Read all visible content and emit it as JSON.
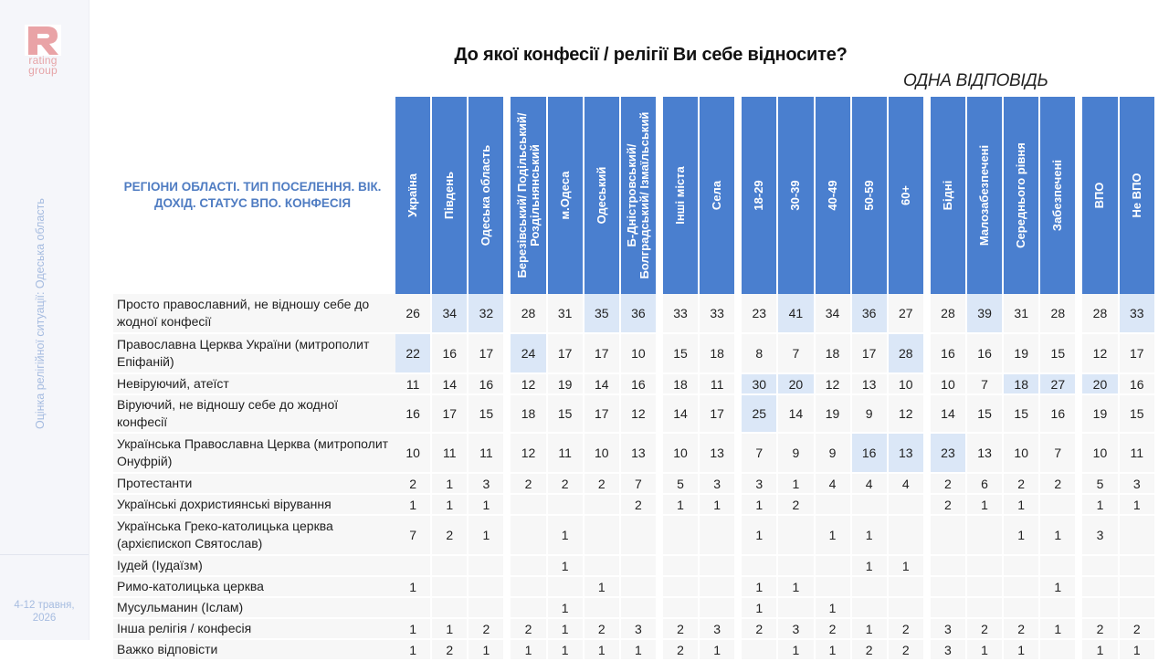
{
  "brand": {
    "logo_letter": "R",
    "logo_line1": "rating",
    "logo_line2": "group",
    "accent": "#e9a3a6"
  },
  "sidebar": {
    "vertical_text": "Оцінка релігійної ситуації: Одеська область",
    "date_line1": "4-12 травня,",
    "date_line2": "2026"
  },
  "title": "До якої конфесії / релігії Ви себе відносите?",
  "subtitle": "ОДНА ВІДПОВІДЬ",
  "table": {
    "corner_label": "РЕГІОНИ ОБЛАСТІ. ТИП ПОСЕЛЕННЯ. ВІК. ДОХІД. СТАТУС ВПО. КОНФЕСІЯ",
    "header_color": "#4a7fcf",
    "highlight_color": "#dbe7f7",
    "groups": [
      [
        "Україна",
        "Південь",
        "Одеська область"
      ],
      [
        "Березівський/ Подільський/ Роздільнянський",
        "м.Одеса",
        "Одеський",
        "Б-Дністровський/ Болградський/ Ізмаїльський"
      ],
      [
        "Інші міста",
        "Села"
      ],
      [
        "18-29",
        "30-39",
        "40-49",
        "50-59",
        "60+"
      ],
      [
        "Бідні",
        "Малозабезпечені",
        "Середнього рівня",
        "Забезпечені"
      ],
      [
        "ВПО",
        "Не ВПО"
      ]
    ],
    "rows": [
      {
        "label": "Просто православний, не відношу себе до жодної конфесії",
        "tall": true,
        "values": [
          "26",
          "34",
          "32",
          "28",
          "31",
          "35",
          "36",
          "33",
          "33",
          "23",
          "41",
          "34",
          "36",
          "27",
          "28",
          "39",
          "31",
          "28",
          "28",
          "33"
        ],
        "highlight": [
          1,
          2,
          5,
          6,
          10,
          12,
          15,
          19
        ]
      },
      {
        "label": "Православна Церква України (митрополит Епіфаній)",
        "tall": true,
        "values": [
          "22",
          "16",
          "17",
          "24",
          "17",
          "17",
          "10",
          "15",
          "18",
          "8",
          "7",
          "18",
          "17",
          "28",
          "16",
          "16",
          "19",
          "15",
          "12",
          "17"
        ],
        "highlight": [
          0,
          3,
          13
        ]
      },
      {
        "label": "Невіруючий, атеїст",
        "tall": false,
        "values": [
          "11",
          "14",
          "16",
          "12",
          "19",
          "14",
          "16",
          "18",
          "11",
          "30",
          "20",
          "12",
          "13",
          "10",
          "10",
          "7",
          "18",
          "27",
          "20",
          "16"
        ],
        "highlight": [
          9,
          10,
          16,
          17,
          18
        ]
      },
      {
        "label": "Віруючий, не відношу себе до жодної конфесії",
        "tall": false,
        "values": [
          "16",
          "17",
          "15",
          "18",
          "15",
          "17",
          "12",
          "14",
          "17",
          "25",
          "14",
          "19",
          "9",
          "12",
          "14",
          "15",
          "15",
          "16",
          "19",
          "15"
        ],
        "highlight": [
          9
        ]
      },
      {
        "label": "Українська Православна Церква (митрополит Онуфрій)",
        "tall": true,
        "values": [
          "10",
          "11",
          "11",
          "12",
          "11",
          "10",
          "13",
          "10",
          "13",
          "7",
          "9",
          "9",
          "16",
          "13",
          "23",
          "13",
          "10",
          "7",
          "10",
          "11"
        ],
        "highlight": [
          12,
          13,
          14
        ]
      },
      {
        "label": "Протестанти",
        "tall": false,
        "values": [
          "2",
          "1",
          "3",
          "2",
          "2",
          "2",
          "7",
          "5",
          "3",
          "3",
          "1",
          "4",
          "4",
          "4",
          "2",
          "6",
          "2",
          "2",
          "5",
          "3"
        ],
        "highlight": []
      },
      {
        "label": "Українські дохристиянські вірування",
        "tall": false,
        "values": [
          "1",
          "1",
          "1",
          "",
          "",
          "",
          "2",
          "1",
          "1",
          "1",
          "2",
          "",
          "",
          "",
          "2",
          "1",
          "1",
          "",
          "1",
          "1"
        ],
        "highlight": []
      },
      {
        "label": "Українська Греко-католицька церква (архієпископ Святослав)",
        "tall": true,
        "values": [
          "7",
          "2",
          "1",
          "",
          "1",
          "",
          "",
          "",
          "",
          "1",
          "",
          "1",
          "1",
          "",
          "",
          "",
          "1",
          "1",
          "3",
          ""
        ],
        "highlight": []
      },
      {
        "label": "Іудей (Іудаїзм)",
        "tall": false,
        "values": [
          "",
          "",
          "",
          "",
          "1",
          "",
          "",
          "",
          "",
          "",
          "",
          "",
          "1",
          "1",
          "",
          "",
          "",
          "",
          "",
          ""
        ],
        "highlight": []
      },
      {
        "label": "Римо-католицька церква",
        "tall": false,
        "values": [
          "1",
          "",
          "",
          "",
          "",
          "1",
          "",
          "",
          "",
          "1",
          "1",
          "",
          "",
          "",
          "",
          "",
          "",
          "1",
          "",
          ""
        ],
        "highlight": []
      },
      {
        "label": "Мусульманин (Іслам)",
        "tall": false,
        "values": [
          "",
          "",
          "",
          "",
          "1",
          "",
          "",
          "",
          "",
          "1",
          "",
          "1",
          "",
          "",
          "",
          "",
          "",
          "",
          "",
          ""
        ],
        "highlight": []
      },
      {
        "label": "Інша релігія / конфесія",
        "tall": false,
        "values": [
          "1",
          "1",
          "2",
          "2",
          "1",
          "2",
          "3",
          "2",
          "3",
          "2",
          "3",
          "2",
          "1",
          "2",
          "3",
          "2",
          "2",
          "1",
          "2",
          "2"
        ],
        "highlight": []
      },
      {
        "label": "Важко відповісти",
        "tall": false,
        "values": [
          "1",
          "2",
          "1",
          "1",
          "1",
          "1",
          "1",
          "2",
          "1",
          "",
          "1",
          "1",
          "2",
          "2",
          "3",
          "1",
          "1",
          "",
          "1",
          "1"
        ],
        "highlight": []
      }
    ]
  }
}
